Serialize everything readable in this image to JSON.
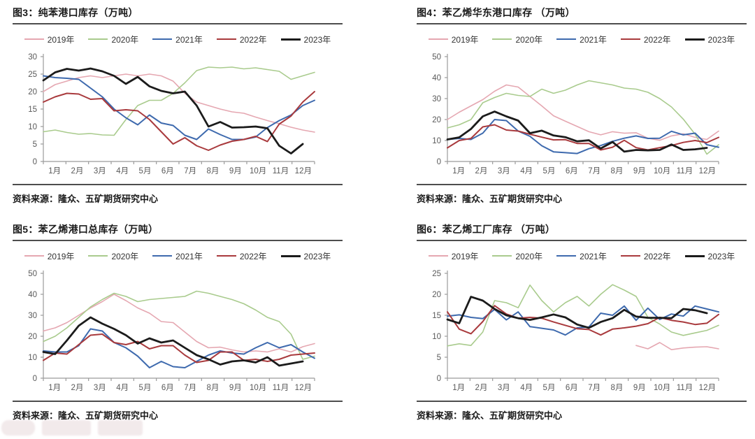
{
  "page": {
    "background": "#ffffff",
    "rule_color": "#4d4d4d",
    "axis_color": "#9b9b9b",
    "tick_text_color": "#595959"
  },
  "months": [
    "1月",
    "2月",
    "3月",
    "4月",
    "5月",
    "6月",
    "7月",
    "8月",
    "9月",
    "10月",
    "11月",
    "12月"
  ],
  "chart_data": [
    {
      "type": "line",
      "title": "图3：纯苯港口库存（万吨）",
      "source": "资料来源：隆众、五矿期货研究中心",
      "ylim": [
        0,
        30
      ],
      "yticks": [
        0,
        5,
        10,
        15,
        20,
        25,
        30
      ],
      "points_per_month": 2,
      "grid": false,
      "legend_position": "top",
      "series": [
        {
          "name": "2019年",
          "color": "#e5a7b1",
          "values": [
            20,
            22,
            23,
            24,
            24.5,
            24,
            24.5,
            25,
            24.5,
            25,
            24.5,
            23,
            19.5,
            17,
            16,
            15,
            14.2,
            13.8,
            12.7,
            11.7,
            10.8,
            9.8,
            9,
            8.4
          ]
        },
        {
          "name": "2020年",
          "color": "#a9cb8d",
          "values": [
            8.5,
            9,
            8.3,
            7.8,
            8,
            7.6,
            7.5,
            12,
            16,
            17.5,
            17.5,
            19.5,
            22.5,
            26,
            27,
            26.8,
            27,
            26.5,
            26.8,
            26.3,
            25.8,
            23.5,
            24.5,
            25.5
          ]
        },
        {
          "name": "2021年",
          "color": "#3e6aae",
          "values": [
            24.5,
            24,
            23.8,
            23.5,
            21,
            18.5,
            15,
            12.5,
            10.5,
            13.3,
            11,
            10.3,
            7.5,
            6.3,
            9.3,
            7.7,
            6.3,
            6.3,
            7,
            9.7,
            11.7,
            13.3,
            16,
            17.5
          ]
        },
        {
          "name": "2022年",
          "color": "#a93a3d",
          "values": [
            17,
            18.5,
            19.5,
            19.3,
            17.8,
            18,
            14.5,
            14.8,
            14.5,
            12,
            8.5,
            5,
            6.8,
            4.5,
            3.2,
            4.7,
            5.8,
            6.3,
            7.2,
            5.7,
            10.7,
            13,
            17,
            20
          ]
        },
        {
          "name": "2023年",
          "color": "#1b1b1b",
          "values": [
            23.2,
            25.5,
            26.5,
            26,
            26.6,
            25.8,
            24.5,
            22.2,
            24.2,
            21.5,
            20.2,
            19.5,
            20,
            16,
            10,
            11.3,
            9.7,
            9.8,
            10,
            9.5,
            4.5,
            2.3,
            5,
            null
          ]
        }
      ]
    },
    {
      "type": "line",
      "title": "图4：苯乙烯华东港口库存 （万吨）",
      "source": "资料来源：隆众、五矿期货研究中心",
      "ylim": [
        0,
        50
      ],
      "yticks": [
        0,
        10,
        20,
        30,
        40,
        50
      ],
      "points_per_month": 2,
      "grid": false,
      "legend_position": "top",
      "series": [
        {
          "name": "2019年",
          "color": "#e5a7b1",
          "values": [
            20,
            23.5,
            26.5,
            29.5,
            33.5,
            36.5,
            35.5,
            31,
            26.5,
            21.8,
            19.2,
            16.7,
            14.2,
            12.7,
            14.2,
            13.5,
            13.7,
            11.1,
            10.1,
            12.2,
            13.2,
            11.5,
            10.5,
            14.5
          ]
        },
        {
          "name": "2020年",
          "color": "#a9cb8d",
          "values": [
            16,
            17.5,
            20,
            28,
            30.5,
            32.5,
            31.5,
            31,
            34.5,
            32.5,
            34,
            36.5,
            38.5,
            37.5,
            36.5,
            35,
            34.5,
            33,
            30,
            26,
            20.2,
            13,
            3.5,
            8
          ]
        },
        {
          "name": "2021年",
          "color": "#3e6aae",
          "values": [
            10.5,
            11,
            10.5,
            13.5,
            20,
            19.5,
            14.5,
            12,
            7.5,
            4.6,
            4.2,
            3.8,
            6.1,
            7.6,
            9.6,
            11.1,
            12.2,
            11,
            11.1,
            14.4,
            12.7,
            13.5,
            8,
            6.8
          ]
        },
        {
          "name": "2022年",
          "color": "#a93a3d",
          "values": [
            6.5,
            10,
            11,
            16.5,
            17.5,
            15,
            14.5,
            13,
            11.6,
            10.3,
            10.4,
            8.6,
            8.6,
            5.5,
            6.8,
            10.1,
            6.6,
            5.5,
            6.6,
            7.6,
            9.1,
            10,
            9,
            11.5
          ]
        },
        {
          "name": "2023年",
          "color": "#1b1b1b",
          "values": [
            10.5,
            11.5,
            15.5,
            21.5,
            23.8,
            21.5,
            19.5,
            13.5,
            14.7,
            12.4,
            11.6,
            9.6,
            10.1,
            6.2,
            9.3,
            4.7,
            5.5,
            5.3,
            5.5,
            8.1,
            5.5,
            5.8,
            6.5,
            null
          ]
        }
      ]
    },
    {
      "type": "line",
      "title": "图5：苯乙烯港口总库存（万吨）",
      "source": "资料来源：隆众、五矿期货研究中心",
      "ylim": [
        0,
        50
      ],
      "yticks": [
        0,
        10,
        20,
        30,
        40,
        50
      ],
      "points_per_month": 2,
      "grid": false,
      "legend_position": "top",
      "series": [
        {
          "name": "2019年",
          "color": "#e5a7b1",
          "values": [
            22.5,
            24,
            26.5,
            30,
            33.5,
            36.5,
            40,
            37,
            33.5,
            31,
            27,
            26.5,
            22,
            17.5,
            14.5,
            14.8,
            13.5,
            12.5,
            13,
            12.5,
            14,
            12.5,
            15,
            16.5
          ]
        },
        {
          "name": "2020年",
          "color": "#a9cb8d",
          "values": [
            17.5,
            20,
            24,
            29,
            34,
            37.5,
            40.5,
            39,
            36.5,
            37.5,
            38,
            38.5,
            39,
            41.5,
            40.5,
            39,
            37.5,
            35.5,
            32.5,
            29,
            27,
            21,
            9,
            10.5
          ]
        },
        {
          "name": "2021年",
          "color": "#3e6aae",
          "values": [
            13,
            12.5,
            12.5,
            15.5,
            23.5,
            22.5,
            17,
            14.5,
            10.5,
            5,
            8,
            5.5,
            5,
            8,
            11,
            13,
            12,
            11.5,
            14.5,
            17,
            14.5,
            16,
            12.5,
            9.5
          ]
        },
        {
          "name": "2022年",
          "color": "#a93a3d",
          "values": [
            8.5,
            12,
            11.5,
            16,
            20.5,
            21,
            17,
            16,
            17.5,
            14,
            15.5,
            15.5,
            11,
            7.5,
            8.5,
            12.5,
            12.5,
            8.5,
            9,
            8,
            9,
            11,
            11.5,
            12
          ]
        },
        {
          "name": "2023年",
          "color": "#1b1b1b",
          "values": [
            12.5,
            11.5,
            18,
            25,
            29,
            26,
            23.5,
            20.5,
            16.5,
            19,
            17,
            18,
            14.5,
            11,
            9,
            6.5,
            8,
            8.5,
            7.5,
            10,
            6,
            7,
            8,
            null
          ]
        }
      ]
    },
    {
      "type": "line",
      "title": "图6：苯乙烯工厂库存 （万吨）",
      "source": "资料来源：隆众、五矿期货研究中心",
      "ylim": [
        0,
        25
      ],
      "yticks": [
        0,
        5,
        10,
        15,
        20,
        25
      ],
      "points_per_month": 2,
      "grid": false,
      "legend_position": "top",
      "series": [
        {
          "name": "2019年",
          "color": "#e5a7b1",
          "values": [
            null,
            null,
            null,
            null,
            null,
            null,
            null,
            null,
            null,
            null,
            null,
            null,
            null,
            null,
            null,
            null,
            7.8,
            7,
            8.5,
            6.8,
            7.2,
            7.4,
            7.5,
            7
          ]
        },
        {
          "name": "2020年",
          "color": "#a9cb8d",
          "values": [
            7.7,
            8.2,
            7.8,
            11,
            18.5,
            18,
            16.8,
            22.2,
            18.5,
            15.8,
            18,
            19.5,
            17.2,
            20,
            22.3,
            21,
            19.5,
            14.5,
            12.9,
            11,
            10.2,
            10.8,
            11.4,
            12.6
          ]
        },
        {
          "name": "2021年",
          "color": "#3e6aae",
          "values": [
            14.8,
            15.1,
            14.5,
            14.2,
            16.4,
            13.9,
            15.8,
            12.3,
            11.9,
            11.5,
            10.3,
            12,
            12.2,
            15.5,
            15,
            17.2,
            13.8,
            16.7,
            14,
            15.3,
            14.8,
            17.2,
            16.5,
            15.8
          ]
        },
        {
          "name": "2022年",
          "color": "#a93a3d",
          "values": [
            15.8,
            11.7,
            10.6,
            13.5,
            17.3,
            15.3,
            14.3,
            14.5,
            14.3,
            13.4,
            12.6,
            11.8,
            11.6,
            10.3,
            11.7,
            12,
            12.4,
            13,
            14.5,
            13.8,
            13.4,
            12.8,
            13.1,
            15.2
          ]
        },
        {
          "name": "2023年",
          "color": "#1b1b1b",
          "values": [
            14,
            13.1,
            19.4,
            18.5,
            16.5,
            15,
            14.3,
            13.9,
            14.5,
            15.2,
            14.5,
            12.8,
            12,
            13.4,
            14.3,
            16.3,
            14.7,
            14.4,
            14.4,
            14.3,
            16.5,
            16.2,
            15.5,
            null
          ]
        }
      ]
    }
  ]
}
